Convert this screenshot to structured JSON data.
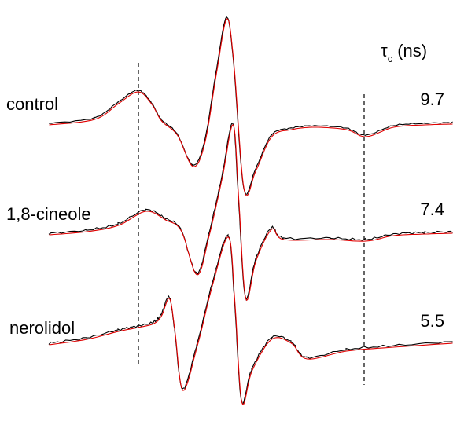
{
  "header": {
    "symbol": "τ",
    "subscript": "c",
    "unit": "(ns)"
  },
  "samples": [
    {
      "label": "control",
      "tau_c": 9.7
    },
    {
      "label": "1,8-cineole",
      "tau_c": 7.4
    },
    {
      "label": "nerolidol",
      "tau_c": 5.5
    }
  ]
}
